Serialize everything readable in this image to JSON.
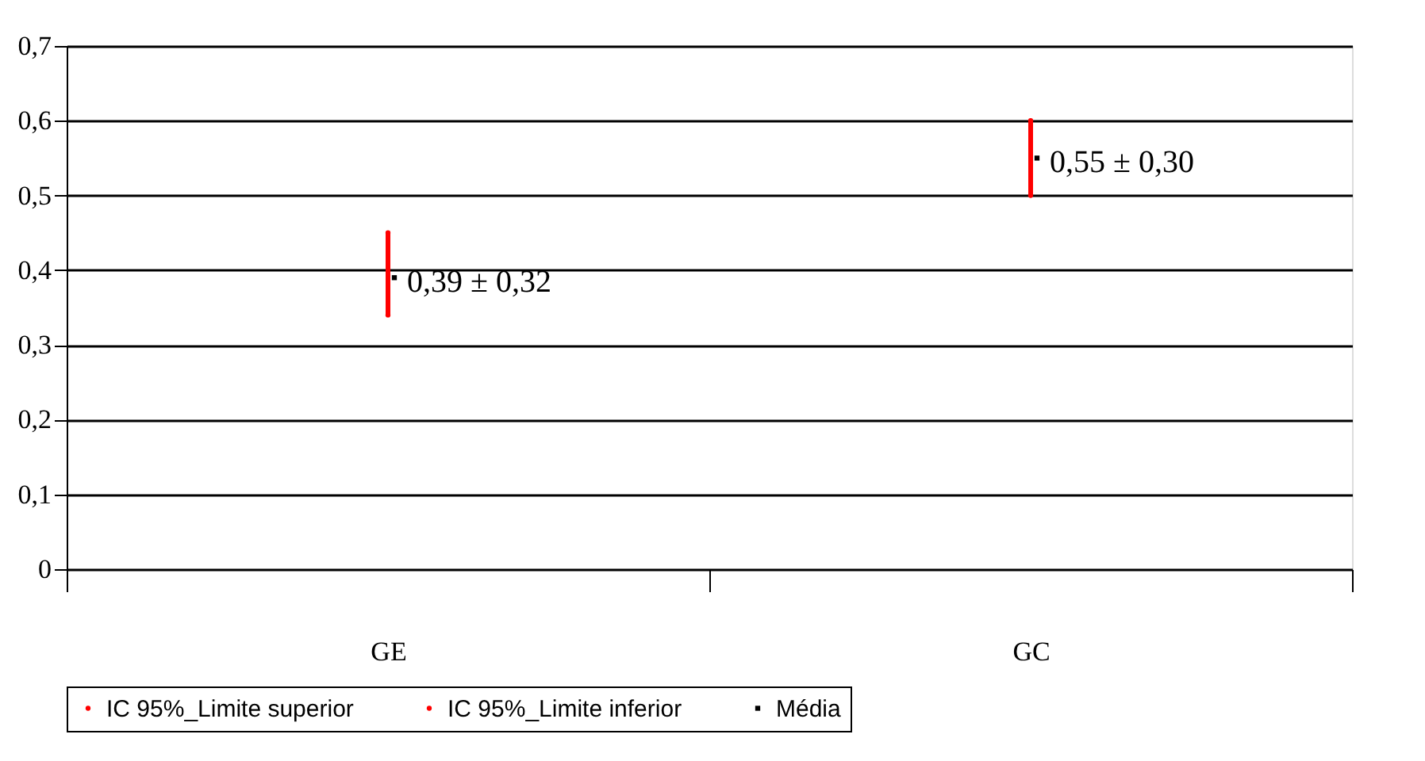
{
  "chart_data": {
    "type": "scatter",
    "categories": [
      "GE",
      "GC"
    ],
    "series": [
      {
        "name": "IC 95%_Limite superior",
        "type": "scatter",
        "marker": "none",
        "color": "#ff0000",
        "values": [
          0.45,
          0.6
        ]
      },
      {
        "name": "IC 95%_Limite inferior",
        "type": "scatter",
        "marker": "none",
        "color": "#ff0000",
        "values": [
          0.34,
          0.5
        ]
      },
      {
        "name": "Média",
        "type": "scatter",
        "marker": "square",
        "color": "#000000",
        "values": [
          0.39,
          0.55
        ],
        "value_labels": [
          "0,39 ± 0,32",
          "0,55 ± 0,30"
        ]
      }
    ],
    "ylim": [
      0,
      0.7
    ],
    "yticks": [
      0,
      {
        "value": 0.1,
        "label": "0,1"
      },
      {
        "value": 0.2,
        "label": "0,2"
      },
      {
        "value": 0.3,
        "label": "0,3"
      },
      {
        "value": 0.4,
        "label": "0,4"
      },
      {
        "value": 0.5,
        "label": "0,5"
      },
      {
        "value": 0.6,
        "label": "0,6"
      },
      {
        "value": 0.7,
        "label": "0,7"
      }
    ],
    "grid": "y",
    "legend": "bottom"
  }
}
